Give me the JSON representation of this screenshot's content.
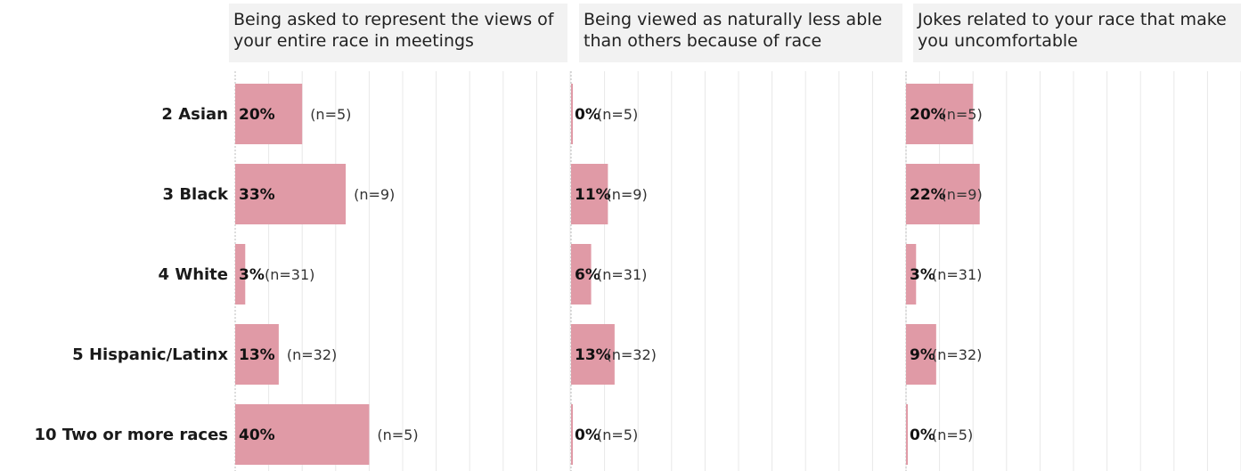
{
  "chart_data": {
    "type": "bar",
    "categories": [
      "2 Asian",
      "3 Black",
      "4 White",
      "5 Hispanic/Latinx",
      "10 Two or more races"
    ],
    "bar_color": "#e09aa6",
    "grid_color": "#e8e8e8",
    "xlim": [
      0,
      1
    ],
    "panels": [
      {
        "title": "Being asked to represent the views of your entire race in meetings",
        "values": [
          20,
          33,
          3,
          13,
          40
        ],
        "value_labels": [
          "20%",
          "33%",
          "3%",
          "13%",
          "40%"
        ],
        "n_labels": [
          "(n=5)",
          "(n=9)",
          "(n=31)",
          "(n=32)",
          "(n=5)"
        ]
      },
      {
        "title": "Being viewed as naturally less able than others because of race",
        "values": [
          0,
          11,
          6,
          13,
          0
        ],
        "value_labels": [
          "0%",
          "11%",
          "6%",
          "13%",
          "0%"
        ],
        "n_labels": [
          "(n=5)",
          "(n=9)",
          "(n=31)",
          "(n=32)",
          "(n=5)"
        ]
      },
      {
        "title": "Jokes related to your race that make you uncomfortable",
        "values": [
          20,
          22,
          3,
          9,
          0
        ],
        "value_labels": [
          "20%",
          "22%",
          "3%",
          "9%",
          "0%"
        ],
        "n_labels": [
          "(n=5)",
          "(n=9)",
          "(n=31)",
          "(n=32)",
          "(n=5)"
        ]
      }
    ]
  }
}
